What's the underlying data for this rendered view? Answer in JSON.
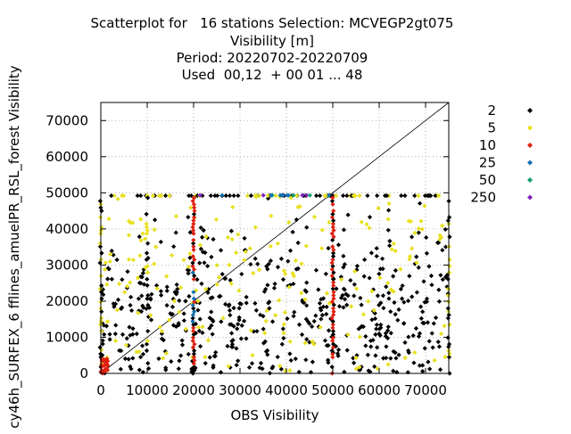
{
  "chart_data": {
    "type": "scatter",
    "title_lines": [
      "Scatterplot for   16 stations Selection: MCVEGP2gt075",
      "Visibility [m]",
      "Period: 20220702-20220709",
      "Used  00,12  + 00 01 ... 48"
    ],
    "xlabel": "OBS Visibility",
    "ylabel": "cy46h_SURFEX_6 fflines_amuelPR_RSL_forest Visibility",
    "xlim": [
      0,
      75000
    ],
    "ylim": [
      0,
      75000
    ],
    "x_ticks": [
      0,
      10000,
      20000,
      30000,
      40000,
      50000,
      60000,
      70000
    ],
    "x_tick_labels": [
      "0",
      "10000",
      "20000",
      "30000",
      "40000",
      "50000",
      "60000",
      "70000"
    ],
    "y_ticks": [
      0,
      10000,
      20000,
      30000,
      40000,
      50000,
      60000,
      70000
    ],
    "y_tick_labels": [
      "0",
      "10000",
      "20000",
      "30000",
      "40000",
      "50000",
      "60000",
      "70000"
    ],
    "grid": true,
    "diagonal": true,
    "legend_placement": "right",
    "series": [
      {
        "name": "2",
        "color": "#000000"
      },
      {
        "name": "5",
        "color": "#e8e020"
      },
      {
        "name": "10",
        "color": "#e02010"
      },
      {
        "name": "25",
        "color": "#1070b0"
      },
      {
        "name": "50",
        "color": "#10a070"
      },
      {
        "name": "250",
        "color": "#8020c0"
      }
    ]
  }
}
